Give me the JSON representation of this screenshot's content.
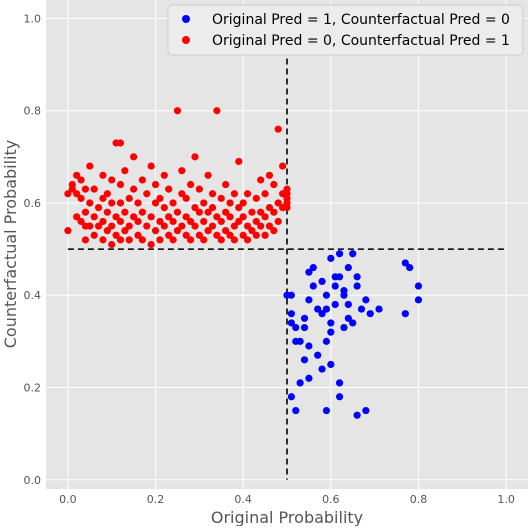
{
  "chart_data": {
    "type": "scatter",
    "xlabel": "Original Probability",
    "ylabel": "Counterfactual Probability",
    "xlim": [
      -0.05,
      1.05
    ],
    "ylim": [
      -0.02,
      1.04
    ],
    "x_ticks": [
      "0.0",
      "0.2",
      "0.4",
      "0.6",
      "0.8",
      "1.0"
    ],
    "y_ticks": [
      "0.0",
      "0.2",
      "0.4",
      "0.6",
      "0.8",
      "1.0"
    ],
    "grid": true,
    "legend_position": "top-right",
    "reference_lines": {
      "vertical_x": 0.5,
      "horizontal_y": 0.5,
      "style": "dashed",
      "color": "#000000"
    },
    "series": [
      {
        "name": "Original Pred = 1, Counterfactual Pred = 0",
        "color": "#0000ff",
        "points": [
          [
            0.5,
            0.4
          ],
          [
            0.51,
            0.34
          ],
          [
            0.51,
            0.36
          ],
          [
            0.51,
            0.4
          ],
          [
            0.51,
            0.18
          ],
          [
            0.52,
            0.15
          ],
          [
            0.52,
            0.3
          ],
          [
            0.52,
            0.33
          ],
          [
            0.53,
            0.21
          ],
          [
            0.53,
            0.3
          ],
          [
            0.54,
            0.33
          ],
          [
            0.54,
            0.35
          ],
          [
            0.54,
            0.26
          ],
          [
            0.55,
            0.39
          ],
          [
            0.55,
            0.45
          ],
          [
            0.55,
            0.22
          ],
          [
            0.56,
            0.42
          ],
          [
            0.56,
            0.46
          ],
          [
            0.57,
            0.37
          ],
          [
            0.57,
            0.27
          ],
          [
            0.58,
            0.36
          ],
          [
            0.58,
            0.43
          ],
          [
            0.58,
            0.24
          ],
          [
            0.59,
            0.37
          ],
          [
            0.59,
            0.4
          ],
          [
            0.59,
            0.15
          ],
          [
            0.6,
            0.32
          ],
          [
            0.6,
            0.48
          ],
          [
            0.6,
            0.25
          ],
          [
            0.61,
            0.38
          ],
          [
            0.61,
            0.44
          ],
          [
            0.61,
            0.42
          ],
          [
            0.62,
            0.49
          ],
          [
            0.62,
            0.44
          ],
          [
            0.62,
            0.21
          ],
          [
            0.62,
            0.18
          ],
          [
            0.63,
            0.4
          ],
          [
            0.63,
            0.33
          ],
          [
            0.63,
            0.41
          ],
          [
            0.64,
            0.38
          ],
          [
            0.64,
            0.46
          ],
          [
            0.65,
            0.49
          ],
          [
            0.65,
            0.34
          ],
          [
            0.66,
            0.42
          ],
          [
            0.66,
            0.44
          ],
          [
            0.66,
            0.14
          ],
          [
            0.67,
            0.37
          ],
          [
            0.68,
            0.39
          ],
          [
            0.68,
            0.15
          ],
          [
            0.69,
            0.36
          ],
          [
            0.71,
            0.37
          ],
          [
            0.77,
            0.36
          ],
          [
            0.77,
            0.47
          ],
          [
            0.78,
            0.46
          ],
          [
            0.8,
            0.39
          ],
          [
            0.8,
            0.42
          ],
          [
            0.59,
            0.3
          ],
          [
            0.6,
            0.34
          ],
          [
            0.64,
            0.35
          ],
          [
            0.55,
            0.29
          ]
        ]
      },
      {
        "name": "Original Pred = 0, Counterfactual Pred = 1",
        "color": "#ff0000",
        "points": [
          [
            0.0,
            0.54
          ],
          [
            0.0,
            0.62
          ],
          [
            0.01,
            0.63
          ],
          [
            0.01,
            0.64
          ],
          [
            0.02,
            0.62
          ],
          [
            0.02,
            0.66
          ],
          [
            0.02,
            0.57
          ],
          [
            0.03,
            0.56
          ],
          [
            0.03,
            0.61
          ],
          [
            0.03,
            0.65
          ],
          [
            0.04,
            0.52
          ],
          [
            0.04,
            0.55
          ],
          [
            0.04,
            0.58
          ],
          [
            0.04,
            0.63
          ],
          [
            0.05,
            0.55
          ],
          [
            0.05,
            0.6
          ],
          [
            0.05,
            0.68
          ],
          [
            0.06,
            0.53
          ],
          [
            0.06,
            0.57
          ],
          [
            0.06,
            0.63
          ],
          [
            0.07,
            0.55
          ],
          [
            0.07,
            0.59
          ],
          [
            0.08,
            0.52
          ],
          [
            0.08,
            0.56
          ],
          [
            0.08,
            0.61
          ],
          [
            0.08,
            0.66
          ],
          [
            0.09,
            0.54
          ],
          [
            0.09,
            0.58
          ],
          [
            0.09,
            0.62
          ],
          [
            0.1,
            0.51
          ],
          [
            0.1,
            0.55
          ],
          [
            0.1,
            0.6
          ],
          [
            0.1,
            0.65
          ],
          [
            0.11,
            0.53
          ],
          [
            0.11,
            0.57
          ],
          [
            0.11,
            0.73
          ],
          [
            0.12,
            0.52
          ],
          [
            0.12,
            0.56
          ],
          [
            0.12,
            0.6
          ],
          [
            0.12,
            0.64
          ],
          [
            0.12,
            0.73
          ],
          [
            0.13,
            0.54
          ],
          [
            0.13,
            0.58
          ],
          [
            0.13,
            0.67
          ],
          [
            0.14,
            0.52
          ],
          [
            0.14,
            0.55
          ],
          [
            0.14,
            0.61
          ],
          [
            0.15,
            0.57
          ],
          [
            0.15,
            0.63
          ],
          [
            0.15,
            0.7
          ],
          [
            0.16,
            0.53
          ],
          [
            0.16,
            0.56
          ],
          [
            0.16,
            0.6
          ],
          [
            0.17,
            0.52
          ],
          [
            0.17,
            0.58
          ],
          [
            0.17,
            0.65
          ],
          [
            0.18,
            0.55
          ],
          [
            0.18,
            0.62
          ],
          [
            0.19,
            0.51
          ],
          [
            0.19,
            0.57
          ],
          [
            0.19,
            0.68
          ],
          [
            0.2,
            0.54
          ],
          [
            0.2,
            0.6
          ],
          [
            0.2,
            0.64
          ],
          [
            0.21,
            0.52
          ],
          [
            0.21,
            0.56
          ],
          [
            0.21,
            0.61
          ],
          [
            0.22,
            0.55
          ],
          [
            0.22,
            0.59
          ],
          [
            0.22,
            0.66
          ],
          [
            0.23,
            0.53
          ],
          [
            0.23,
            0.57
          ],
          [
            0.23,
            0.63
          ],
          [
            0.24,
            0.52
          ],
          [
            0.24,
            0.56
          ],
          [
            0.24,
            0.6
          ],
          [
            0.25,
            0.54
          ],
          [
            0.25,
            0.58
          ],
          [
            0.25,
            0.8
          ],
          [
            0.26,
            0.55
          ],
          [
            0.26,
            0.62
          ],
          [
            0.26,
            0.67
          ],
          [
            0.27,
            0.53
          ],
          [
            0.27,
            0.57
          ],
          [
            0.27,
            0.61
          ],
          [
            0.28,
            0.52
          ],
          [
            0.28,
            0.56
          ],
          [
            0.28,
            0.64
          ],
          [
            0.29,
            0.55
          ],
          [
            0.29,
            0.59
          ],
          [
            0.29,
            0.7
          ],
          [
            0.3,
            0.53
          ],
          [
            0.3,
            0.58
          ],
          [
            0.3,
            0.63
          ],
          [
            0.31,
            0.52
          ],
          [
            0.31,
            0.56
          ],
          [
            0.31,
            0.6
          ],
          [
            0.32,
            0.54
          ],
          [
            0.32,
            0.58
          ],
          [
            0.32,
            0.66
          ],
          [
            0.33,
            0.55
          ],
          [
            0.33,
            0.59
          ],
          [
            0.33,
            0.62
          ],
          [
            0.34,
            0.53
          ],
          [
            0.34,
            0.57
          ],
          [
            0.34,
            0.8
          ],
          [
            0.35,
            0.52
          ],
          [
            0.35,
            0.56
          ],
          [
            0.35,
            0.61
          ],
          [
            0.36,
            0.54
          ],
          [
            0.36,
            0.58
          ],
          [
            0.36,
            0.64
          ],
          [
            0.37,
            0.53
          ],
          [
            0.37,
            0.57
          ],
          [
            0.37,
            0.6
          ],
          [
            0.38,
            0.52
          ],
          [
            0.38,
            0.55
          ],
          [
            0.38,
            0.62
          ],
          [
            0.39,
            0.56
          ],
          [
            0.39,
            0.59
          ],
          [
            0.39,
            0.69
          ],
          [
            0.4,
            0.53
          ],
          [
            0.4,
            0.57
          ],
          [
            0.4,
            0.6
          ],
          [
            0.41,
            0.52
          ],
          [
            0.41,
            0.55
          ],
          [
            0.41,
            0.62
          ],
          [
            0.42,
            0.54
          ],
          [
            0.42,
            0.58
          ],
          [
            0.43,
            0.53
          ],
          [
            0.43,
            0.56
          ],
          [
            0.43,
            0.61
          ],
          [
            0.44,
            0.55
          ],
          [
            0.44,
            0.58
          ],
          [
            0.44,
            0.65
          ],
          [
            0.45,
            0.53
          ],
          [
            0.45,
            0.57
          ],
          [
            0.45,
            0.62
          ],
          [
            0.46,
            0.55
          ],
          [
            0.46,
            0.59
          ],
          [
            0.46,
            0.66
          ],
          [
            0.47,
            0.54
          ],
          [
            0.47,
            0.58
          ],
          [
            0.47,
            0.64
          ],
          [
            0.48,
            0.56
          ],
          [
            0.48,
            0.6
          ],
          [
            0.48,
            0.76
          ],
          [
            0.49,
            0.59
          ],
          [
            0.49,
            0.62
          ],
          [
            0.49,
            0.68
          ],
          [
            0.5,
            0.59
          ],
          [
            0.5,
            0.6
          ],
          [
            0.5,
            0.61
          ],
          [
            0.5,
            0.62
          ],
          [
            0.5,
            0.63
          ]
        ]
      }
    ]
  }
}
